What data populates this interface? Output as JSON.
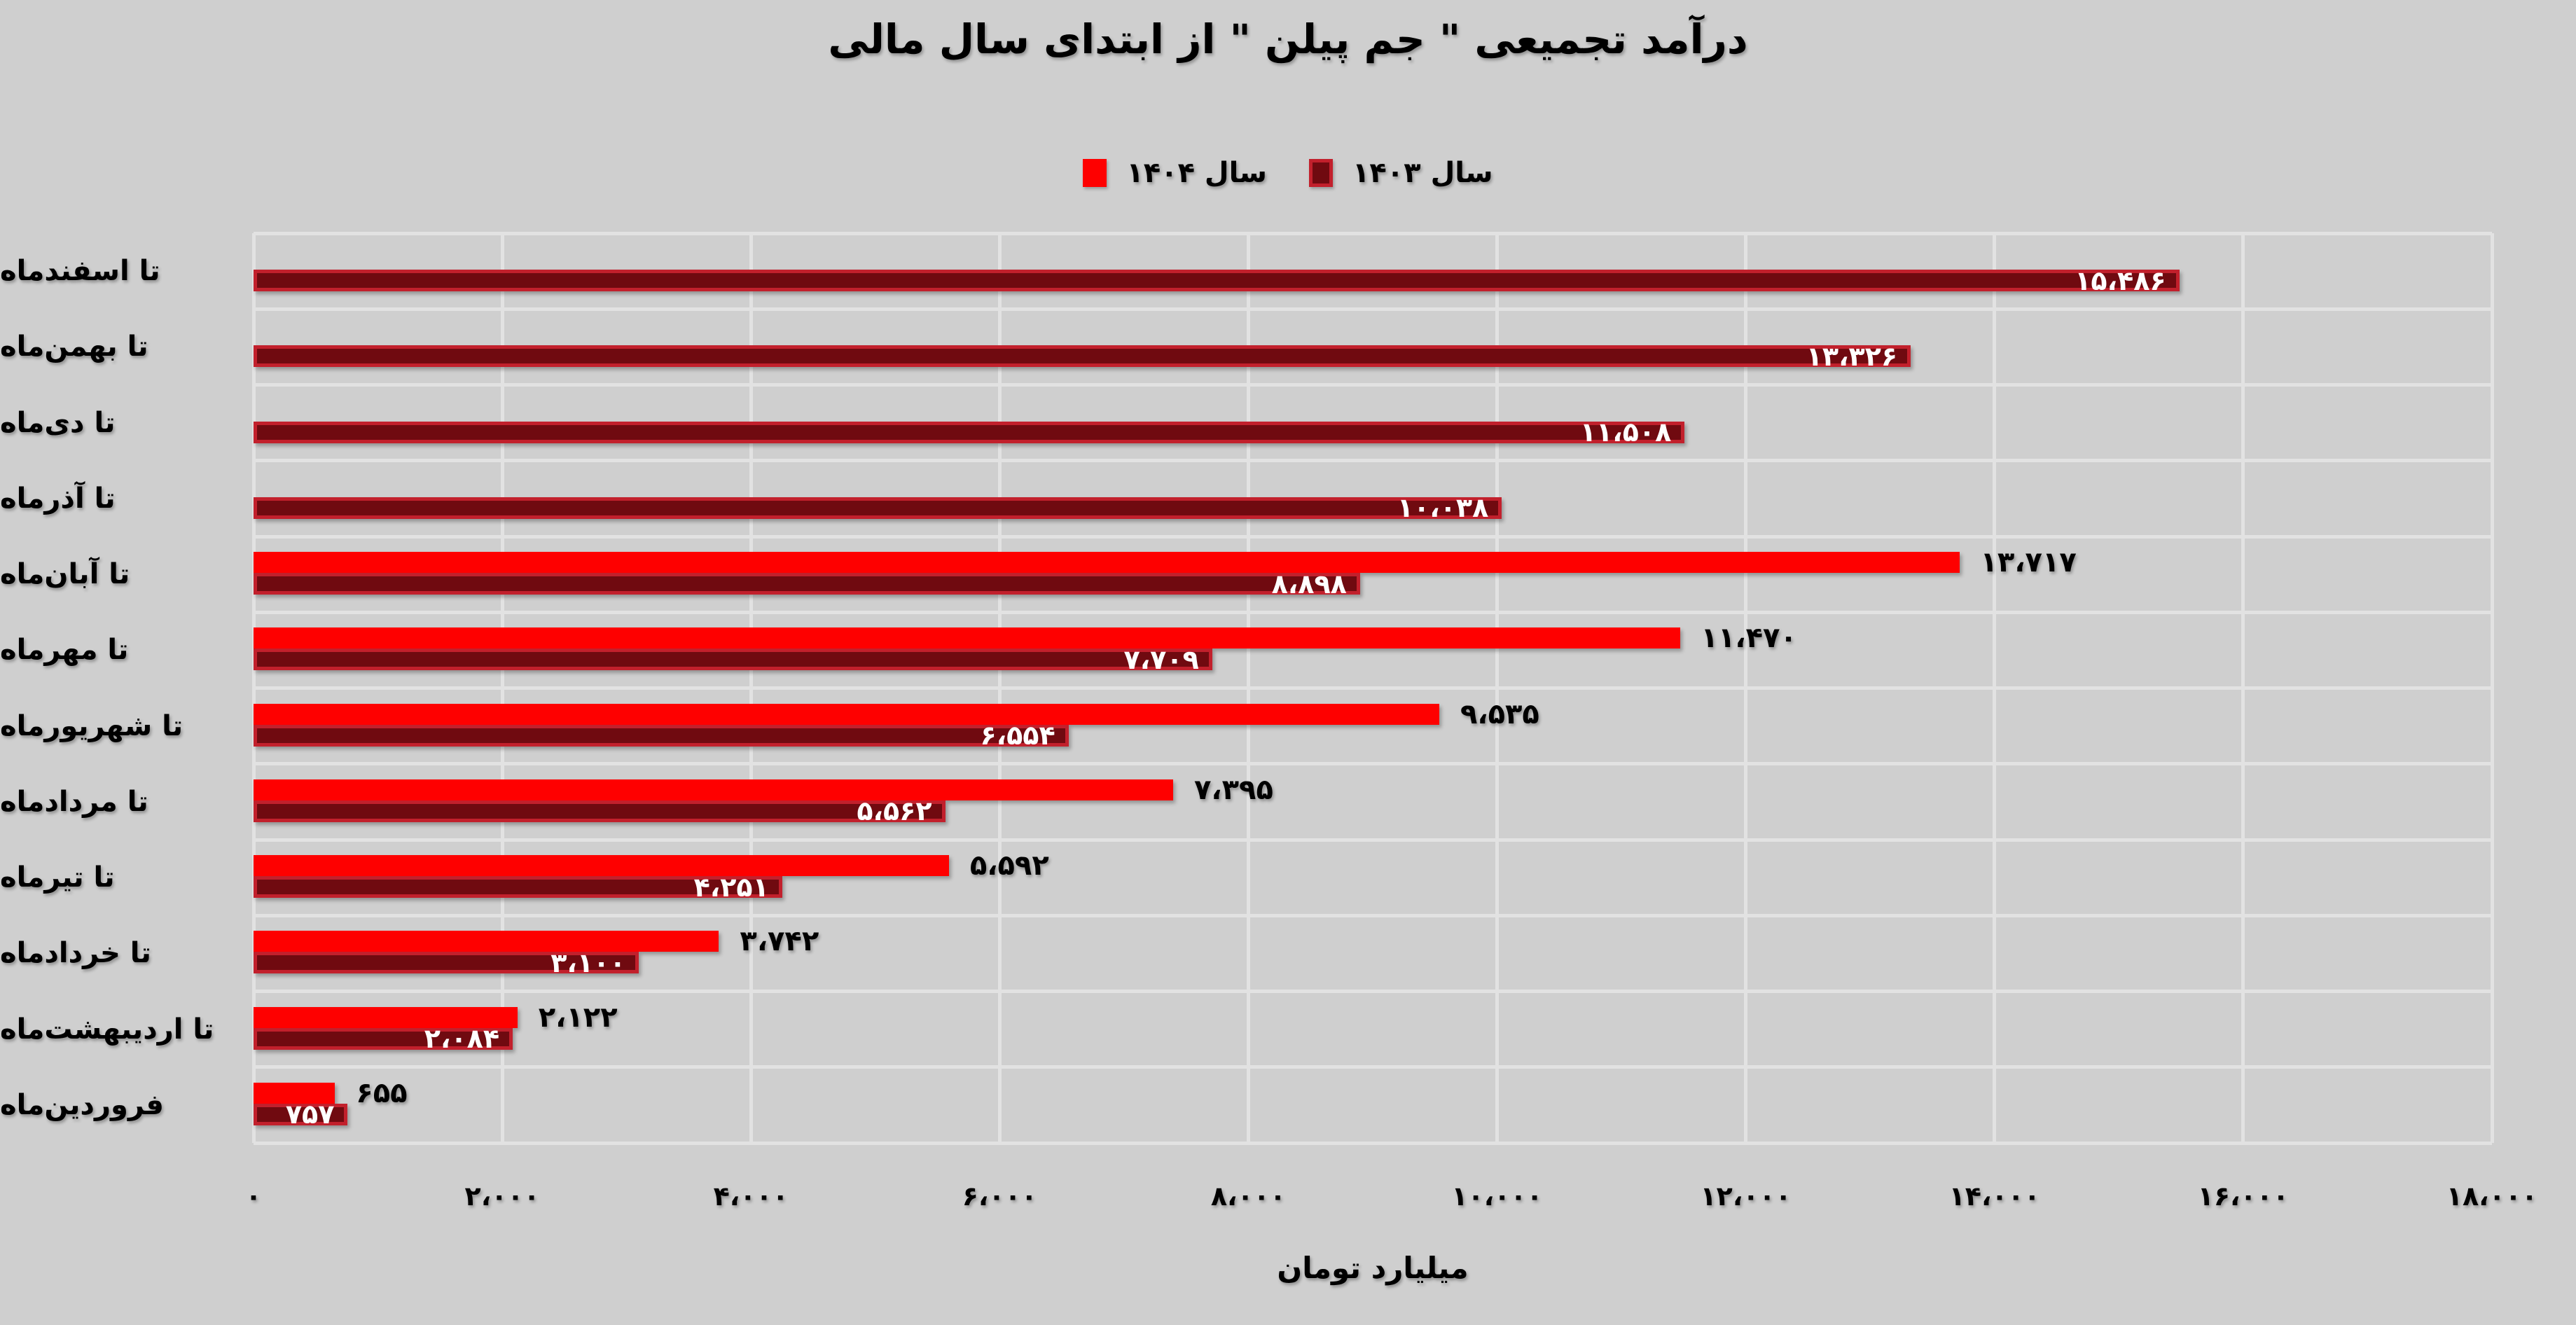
{
  "title": "درآمد تجمیعی \" جم پیلن \" از ابتدای سال مالی",
  "legend": [
    {
      "label": "سال ۱۴۰۴",
      "color": "#fe0000"
    },
    {
      "label": "سال ۱۴۰۳",
      "color": "#700a10",
      "border_color": "#c2202c"
    }
  ],
  "colors": {
    "background": "#cfcfcf",
    "gridline": "#e2e2e2",
    "series_1404": "#fe0000",
    "series_1403_fill": "#700a10",
    "series_1403_border": "#c2202c",
    "label_inside": "#ffffff",
    "label_outside": "#000000"
  },
  "chart_data": {
    "type": "bar",
    "orientation": "horizontal",
    "title": "درآمد تجمیعی \" جم پیلن \" از ابتدای سال مالی",
    "xlabel": "میلیارد تومان",
    "xlim": [
      0,
      18000
    ],
    "grid": true,
    "legend_position": "top-center",
    "categories": [
      "تا اسفندماه",
      "تا بهمن‌ماه",
      "تا دی‌ماه",
      "تا آذرماه",
      "تا آبان‌ماه",
      "تا مهرماه",
      "تا شهریورماه",
      "تا مردادماه",
      "تا تیرماه",
      "تا خردادماه",
      "تا اردیبهشت‌ماه",
      "فروردین‌ماه"
    ],
    "series": [
      {
        "name": "سال ۱۴۰۴",
        "color": "#fe0000",
        "label_placement": "outside-black",
        "values": [
          null,
          null,
          null,
          null,
          13717,
          11470,
          9535,
          7395,
          5592,
          3742,
          2122,
          655
        ],
        "labels": [
          null,
          null,
          null,
          null,
          "۱۳،۷۱۷",
          "۱۱،۴۷۰",
          "۹،۵۳۵",
          "۷،۳۹۵",
          "۵،۵۹۲",
          "۳،۷۴۲",
          "۲،۱۲۲",
          "۶۵۵"
        ]
      },
      {
        "name": "سال ۱۴۰۳",
        "color": "#700a10",
        "label_placement": "inside-white",
        "values": [
          15486,
          13326,
          11508,
          10038,
          8898,
          7709,
          6554,
          5562,
          4251,
          3100,
          2084,
          757
        ],
        "labels": [
          "۱۵،۴۸۶",
          "۱۳،۳۲۶",
          "۱۱،۵۰۸",
          "۱۰،۰۳۸",
          "۸،۸۹۸",
          "۷،۷۰۹",
          "۶،۵۵۴",
          "۵،۵۶۲",
          "۴،۲۵۱",
          "۳،۱۰۰",
          "۲،۰۸۴",
          "۷۵۷"
        ]
      }
    ],
    "xticks": {
      "values": [
        0,
        2000,
        4000,
        6000,
        8000,
        10000,
        12000,
        14000,
        16000,
        18000
      ],
      "labels": [
        "۰",
        "۲،۰۰۰",
        "۴،۰۰۰",
        "۶،۰۰۰",
        "۸،۰۰۰",
        "۱۰،۰۰۰",
        "۱۲،۰۰۰",
        "۱۴،۰۰۰",
        "۱۶،۰۰۰",
        "۱۸،۰۰۰"
      ]
    }
  }
}
